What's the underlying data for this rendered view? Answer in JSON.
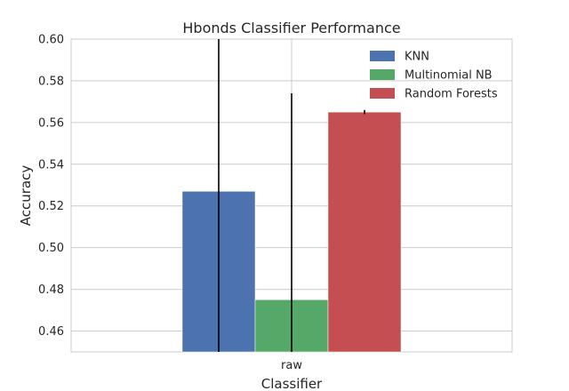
{
  "chart_data": {
    "type": "bar",
    "title": "Hbonds Classifier Performance",
    "xlabel": "Classifier",
    "ylabel": "Accuracy",
    "categories": [
      "raw"
    ],
    "ylim": [
      0.45,
      0.6
    ],
    "yticks": [
      "0.46",
      "0.48",
      "0.50",
      "0.52",
      "0.54",
      "0.56",
      "0.58",
      "0.60"
    ],
    "grid": true,
    "legend_position": "top-right",
    "series": [
      {
        "name": "KNN",
        "values": [
          0.527
        ],
        "error_top": [
          0.6
        ],
        "error_bottom": [
          0.45
        ],
        "color": "#4c72b0"
      },
      {
        "name": "Multinomial NB",
        "values": [
          0.475
        ],
        "error_top": [
          0.574
        ],
        "error_bottom": [
          0.45
        ],
        "color": "#55a868"
      },
      {
        "name": "Random Forests",
        "values": [
          0.565
        ],
        "error_top": [
          0.566
        ],
        "error_bottom": [
          0.564
        ],
        "color": "#c44e52"
      }
    ]
  }
}
